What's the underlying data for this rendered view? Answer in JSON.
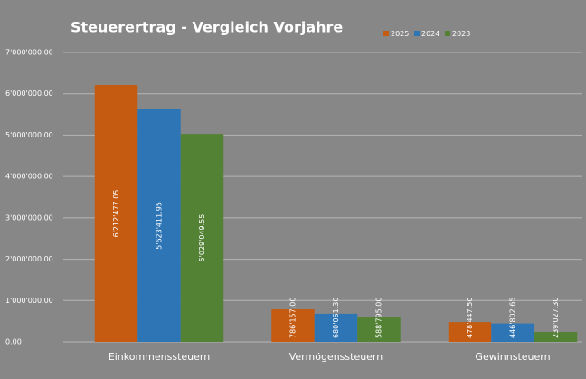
{
  "chart_data": {
    "type": "bar",
    "title": "Steuerertrag - Vergleich Vorjahre",
    "categories": [
      "Einkommenssteuern",
      "Vermögenssteuern",
      "Gewinnsteuern"
    ],
    "series": [
      {
        "name": "2025",
        "color": "#c55a11",
        "values": [
          6212477.05,
          786157.0,
          478447.5
        ],
        "value_labels": [
          "6'212'477.05",
          "786'157.00",
          "478'447.50"
        ]
      },
      {
        "name": "2024",
        "color": "#2e75b6",
        "values": [
          5623411.95,
          680061.3,
          446802.65
        ],
        "value_labels": [
          "5'623'411.95",
          "680'061.30",
          "446'802.65"
        ]
      },
      {
        "name": "2023",
        "color": "#548235",
        "values": [
          5029049.55,
          588795.0,
          239027.3
        ],
        "value_labels": [
          "5'029'049.55",
          "588'795.00",
          "239'027.30"
        ]
      }
    ],
    "ylim": [
      0,
      7000000
    ],
    "yticks": [
      {
        "value": 0,
        "label": "0.00"
      },
      {
        "value": 1000000,
        "label": "1'000'000.00"
      },
      {
        "value": 2000000,
        "label": "2'000'000.00"
      },
      {
        "value": 3000000,
        "label": "3'000'000.00"
      },
      {
        "value": 4000000,
        "label": "4'000'000.00"
      },
      {
        "value": 5000000,
        "label": "5'000'000.00"
      },
      {
        "value": 6000000,
        "label": "6'000'000.00"
      },
      {
        "value": 7000000,
        "label": "7'000'000.00"
      }
    ],
    "grid": true,
    "legend": "top"
  }
}
